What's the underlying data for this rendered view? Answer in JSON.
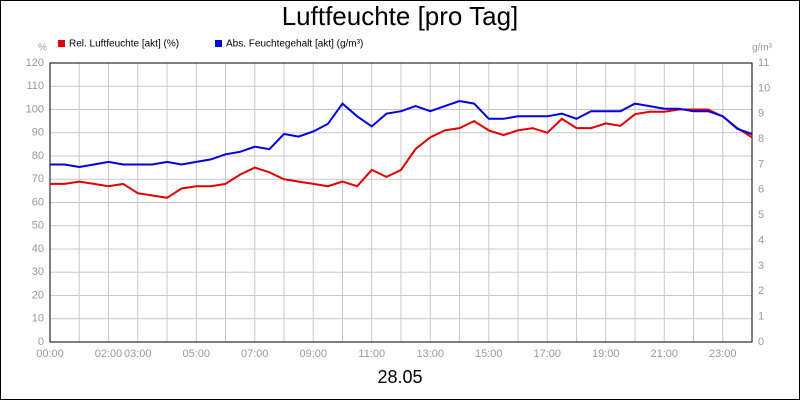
{
  "chart_data": {
    "type": "line",
    "title": "Luftfeuchte [pro Tag]",
    "xlabel": "28.05",
    "ylabel": "%",
    "y2label": "g/m³",
    "x": [
      0,
      0.5,
      1,
      1.5,
      2,
      2.5,
      3,
      3.5,
      4,
      4.5,
      5,
      5.5,
      6,
      6.5,
      7,
      7.5,
      8,
      8.5,
      9,
      9.5,
      10,
      10.5,
      11,
      11.5,
      12,
      12.5,
      13,
      13.5,
      14,
      14.5,
      15,
      15.5,
      16,
      16.5,
      17,
      17.5,
      18,
      18.5,
      19,
      19.5,
      20,
      20.5,
      21,
      21.5,
      22,
      22.5,
      23,
      23.5,
      24
    ],
    "series": [
      {
        "name": "Rel. Luftfeuchte [akt] (%)",
        "color": "#e00000",
        "values": [
          68,
          68,
          69,
          68,
          67,
          68,
          64,
          63,
          62,
          66,
          67,
          67,
          68,
          72,
          75,
          73,
          70,
          69,
          68,
          67,
          69,
          67,
          74,
          71,
          74,
          83,
          88,
          91,
          92,
          95,
          91,
          89,
          91,
          92,
          90,
          96,
          92,
          92,
          94,
          93,
          98,
          99,
          99,
          100,
          100,
          100,
          97,
          92,
          88
        ]
      },
      {
        "name": "Abs. Feuchtegehalt [akt] (g/m³)",
        "color": "#0000e0",
        "axis": "y2",
        "values": [
          7.0,
          7.0,
          6.9,
          7.0,
          7.1,
          7.0,
          7.0,
          7.0,
          7.1,
          7.0,
          7.1,
          7.2,
          7.4,
          7.5,
          7.7,
          7.6,
          8.2,
          8.1,
          8.3,
          8.6,
          9.4,
          8.9,
          8.5,
          9.0,
          9.1,
          9.3,
          9.1,
          9.3,
          9.5,
          9.4,
          8.8,
          8.8,
          8.9,
          8.9,
          8.9,
          9.0,
          8.8,
          9.1,
          9.1,
          9.1,
          9.4,
          9.3,
          9.2,
          9.2,
          9.1,
          9.1,
          8.9,
          8.4,
          8.2
        ]
      }
    ],
    "xlim": [
      0,
      24
    ],
    "xticks": [
      {
        "value": 0,
        "label": "00:00"
      },
      {
        "value": 2,
        "label": "02:00"
      },
      {
        "value": 3,
        "label": "03:00"
      },
      {
        "value": 5,
        "label": "05:00"
      },
      {
        "value": 7,
        "label": "07:00"
      },
      {
        "value": 9,
        "label": "09:00"
      },
      {
        "value": 11,
        "label": "11:00"
      },
      {
        "value": 13,
        "label": "13:00"
      },
      {
        "value": 15,
        "label": "15:00"
      },
      {
        "value": 17,
        "label": "17:00"
      },
      {
        "value": 19,
        "label": "19:00"
      },
      {
        "value": 21,
        "label": "21:00"
      },
      {
        "value": 23,
        "label": "23:00"
      }
    ],
    "xgrid": [
      1,
      4,
      6,
      8,
      10,
      12,
      14,
      16,
      18,
      20,
      22,
      24
    ],
    "ylim": [
      0,
      120
    ],
    "yticks": [
      0,
      10,
      20,
      30,
      40,
      50,
      60,
      70,
      80,
      90,
      100,
      110,
      120
    ],
    "y2lim": [
      0,
      11
    ],
    "y2ticks": [
      0,
      1,
      2,
      3,
      4,
      5,
      6,
      7,
      8,
      9,
      10,
      11
    ],
    "grid": true
  }
}
